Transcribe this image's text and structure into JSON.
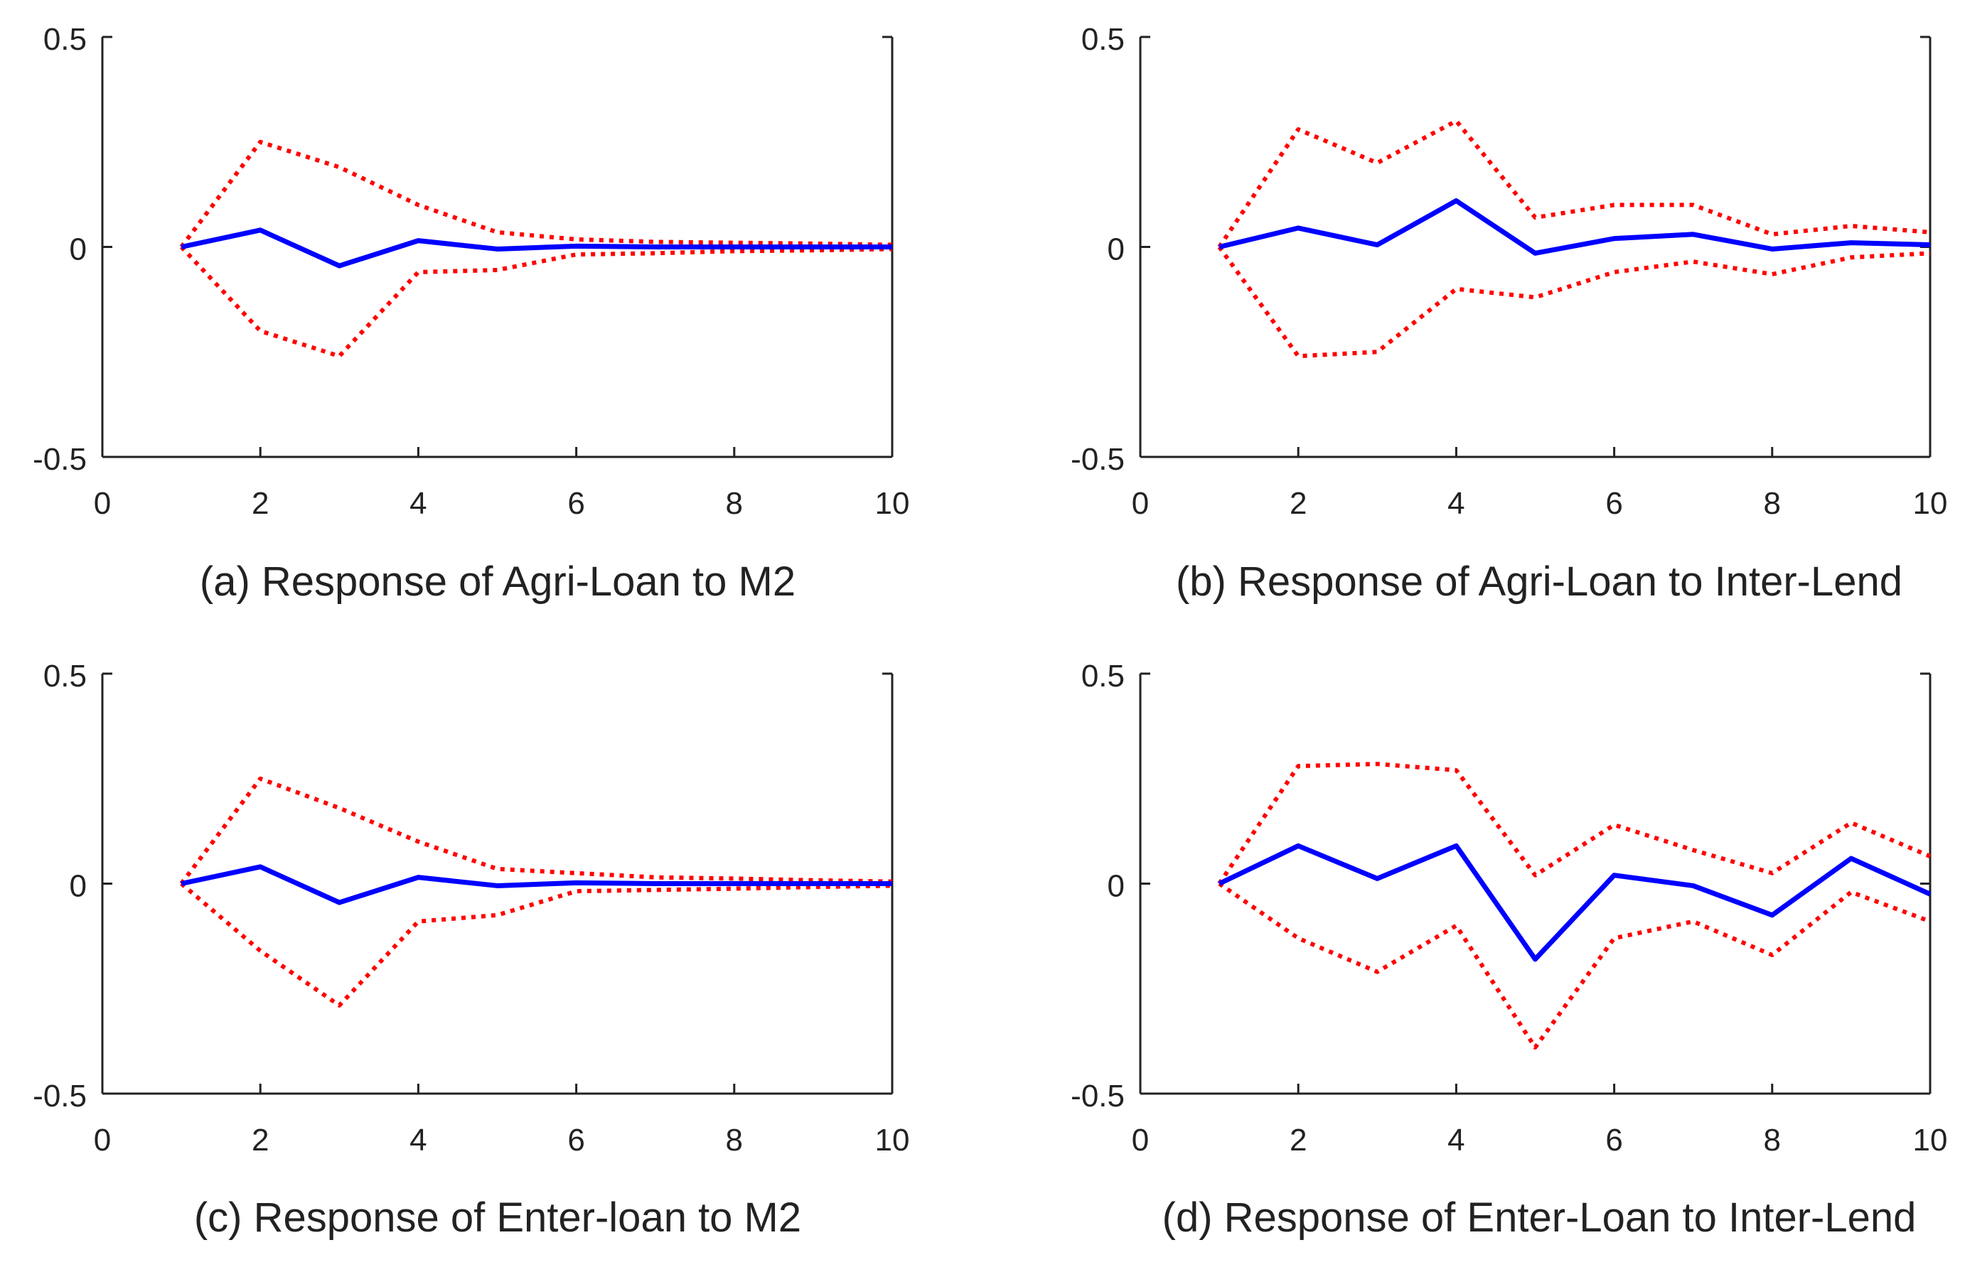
{
  "figure": {
    "background": "#ffffff",
    "axis_color": "#222222"
  },
  "chart_data": [
    {
      "type": "line",
      "title": "(a) Response of Agri-Loan to M2",
      "xlim": [
        0,
        10
      ],
      "ylim": [
        -0.5,
        0.5
      ],
      "xticks": [
        "0",
        "2",
        "4",
        "6",
        "8",
        "10"
      ],
      "yticks": [
        "0.5",
        "0",
        "-0.5"
      ],
      "x": [
        1,
        2,
        3,
        4,
        5,
        6,
        7,
        8,
        9,
        10
      ],
      "series": [
        {
          "name": "response",
          "style": "solid",
          "color": "#0000ff",
          "values": [
            0,
            0.04,
            -0.045,
            0.015,
            -0.005,
            0.002,
            0,
            0,
            0,
            0
          ]
        },
        {
          "name": "upper bound",
          "style": "dotted",
          "color": "#ff0000",
          "values": [
            0,
            0.25,
            0.19,
            0.1,
            0.035,
            0.018,
            0.012,
            0.01,
            0.008,
            0.005
          ]
        },
        {
          "name": "lower bound",
          "style": "dotted",
          "color": "#ff0000",
          "values": [
            0,
            -0.2,
            -0.26,
            -0.06,
            -0.055,
            -0.018,
            -0.015,
            -0.01,
            -0.008,
            -0.005
          ]
        }
      ]
    },
    {
      "type": "line",
      "title": "(b) Response of Agri-Loan to Inter-Lend",
      "xlim": [
        0,
        10
      ],
      "ylim": [
        -0.5,
        0.5
      ],
      "xticks": [
        "0",
        "2",
        "4",
        "6",
        "8",
        "10"
      ],
      "yticks": [
        "0.5",
        "0",
        "-0.5"
      ],
      "x": [
        1,
        2,
        3,
        4,
        5,
        6,
        7,
        8,
        9,
        10
      ],
      "series": [
        {
          "name": "response",
          "style": "solid",
          "color": "#0000ff",
          "values": [
            0,
            0.045,
            0.005,
            0.11,
            -0.015,
            0.02,
            0.03,
            -0.005,
            0.01,
            0.005
          ]
        },
        {
          "name": "upper bound",
          "style": "dotted",
          "color": "#ff0000",
          "values": [
            0,
            0.28,
            0.2,
            0.3,
            0.07,
            0.1,
            0.1,
            0.03,
            0.05,
            0.035
          ]
        },
        {
          "name": "lower bound",
          "style": "dotted",
          "color": "#ff0000",
          "values": [
            0,
            -0.26,
            -0.25,
            -0.1,
            -0.12,
            -0.06,
            -0.035,
            -0.065,
            -0.025,
            -0.015
          ]
        }
      ]
    },
    {
      "type": "line",
      "title": "(c) Response of Enter-loan to M2",
      "xlim": [
        0,
        10
      ],
      "ylim": [
        -0.5,
        0.5
      ],
      "xticks": [
        "0",
        "2",
        "4",
        "6",
        "8",
        "10"
      ],
      "yticks": [
        "0.5",
        "0",
        "-0.5"
      ],
      "x": [
        1,
        2,
        3,
        4,
        5,
        6,
        7,
        8,
        9,
        10
      ],
      "series": [
        {
          "name": "response",
          "style": "solid",
          "color": "#0000ff",
          "values": [
            0,
            0.04,
            -0.045,
            0.015,
            -0.005,
            0.002,
            0,
            0,
            0,
            0
          ]
        },
        {
          "name": "upper bound",
          "style": "dotted",
          "color": "#ff0000",
          "values": [
            0,
            0.25,
            0.18,
            0.1,
            0.035,
            0.025,
            0.015,
            0.012,
            0.008,
            0.005
          ]
        },
        {
          "name": "lower bound",
          "style": "dotted",
          "color": "#ff0000",
          "values": [
            0,
            -0.16,
            -0.29,
            -0.09,
            -0.075,
            -0.018,
            -0.015,
            -0.012,
            -0.008,
            -0.005
          ]
        }
      ]
    },
    {
      "type": "line",
      "title": "(d) Response of Enter-Loan to Inter-Lend",
      "xlim": [
        0,
        10
      ],
      "ylim": [
        -0.5,
        0.5
      ],
      "xticks": [
        "0",
        "2",
        "4",
        "6",
        "8",
        "10"
      ],
      "yticks": [
        "0.5",
        "0",
        "-0.5"
      ],
      "x": [
        1,
        2,
        3,
        4,
        5,
        6,
        7,
        8,
        9,
        10
      ],
      "series": [
        {
          "name": "response",
          "style": "solid",
          "color": "#0000ff",
          "values": [
            0,
            0.09,
            0.012,
            0.09,
            -0.18,
            0.02,
            -0.005,
            -0.075,
            0.06,
            -0.025
          ]
        },
        {
          "name": "upper bound",
          "style": "dotted",
          "color": "#ff0000",
          "values": [
            0,
            0.28,
            0.285,
            0.27,
            0.02,
            0.14,
            0.08,
            0.025,
            0.145,
            0.065
          ]
        },
        {
          "name": "lower bound",
          "style": "dotted",
          "color": "#ff0000",
          "values": [
            0,
            -0.13,
            -0.21,
            -0.1,
            -0.39,
            -0.13,
            -0.09,
            -0.17,
            -0.02,
            -0.09
          ]
        }
      ]
    }
  ]
}
